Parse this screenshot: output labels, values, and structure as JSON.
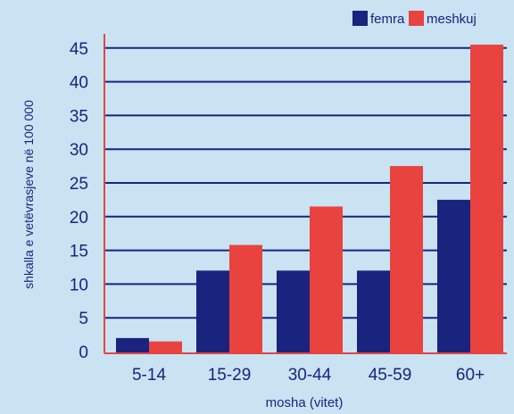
{
  "chart_data": {
    "type": "bar",
    "categories": [
      "5-14",
      "15-29",
      "30-44",
      "45-59",
      "60+"
    ],
    "series": [
      {
        "name": "femra",
        "color": "#1a237e",
        "values": [
          2,
          12,
          12,
          12,
          22.5
        ]
      },
      {
        "name": "meshkuj",
        "color": "#e8433f",
        "values": [
          1.5,
          15.8,
          21.5,
          27.5,
          45.5
        ]
      }
    ],
    "xlabel": "mosha (vitet)",
    "ylabel": "shkalla e vetëvrasjeve në 100 000",
    "yticks": [
      0,
      5,
      10,
      15,
      20,
      25,
      30,
      35,
      40,
      45
    ],
    "ylim": [
      0,
      47
    ],
    "grid": true,
    "legend": "top-right"
  },
  "colors": {
    "background": "#c9e3f3",
    "grid": "#1a237e",
    "axis": "#e8433f",
    "text": "#1a237e"
  }
}
